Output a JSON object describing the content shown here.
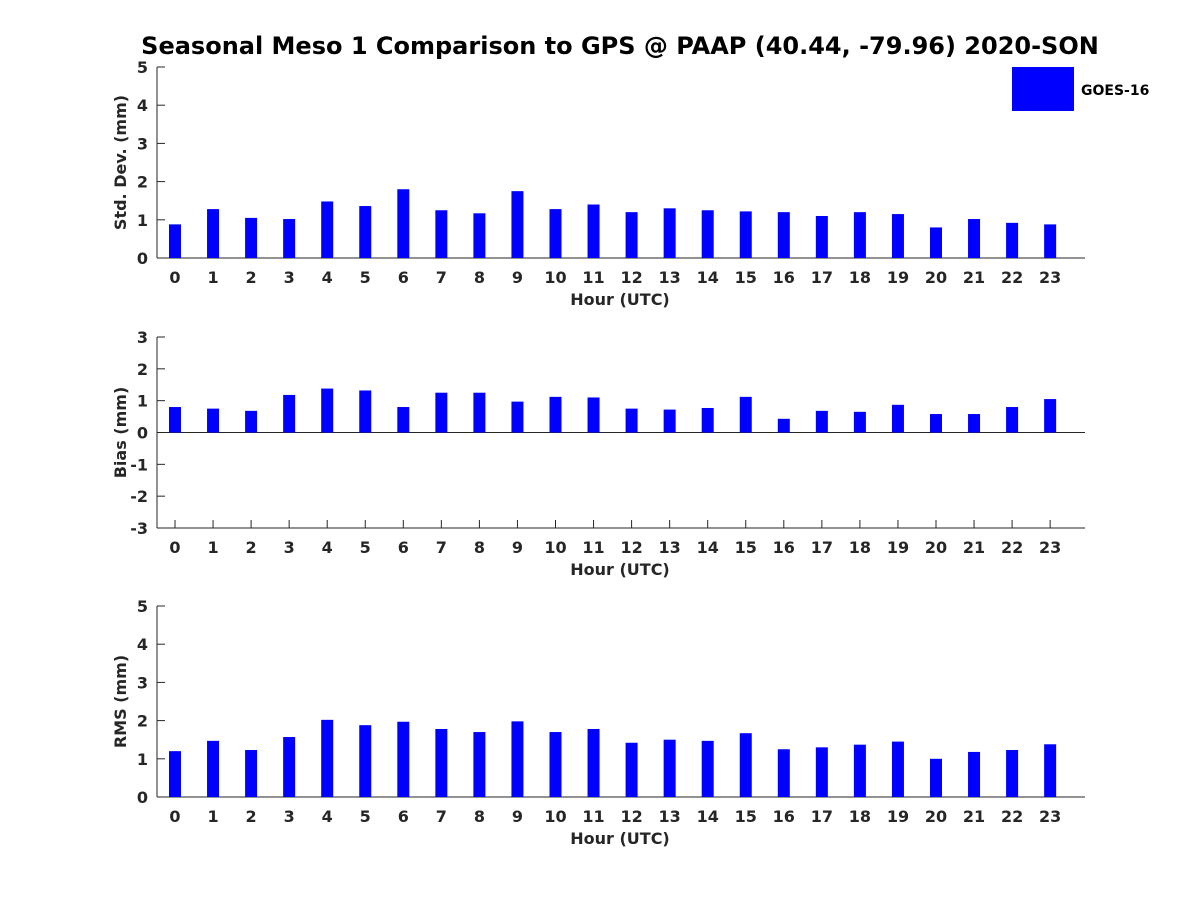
{
  "figure": {
    "title": "Seasonal Meso 1 Comparison to GPS @ PAAP (40.44, -79.96) 2020-SON"
  },
  "legend": {
    "label": "GOES-16",
    "color": "#0000ff"
  },
  "chart_data": [
    {
      "type": "bar",
      "xlabel": "Hour (UTC)",
      "ylabel": "Std. Dev. (mm)",
      "categories": [
        "0",
        "1",
        "2",
        "3",
        "4",
        "5",
        "6",
        "7",
        "8",
        "9",
        "10",
        "11",
        "12",
        "13",
        "14",
        "15",
        "16",
        "17",
        "18",
        "19",
        "20",
        "21",
        "22",
        "23"
      ],
      "series": [
        {
          "name": "GOES-16",
          "color": "#0000ff",
          "values": [
            0.88,
            1.28,
            1.05,
            1.02,
            1.48,
            1.36,
            1.8,
            1.25,
            1.17,
            1.75,
            1.28,
            1.4,
            1.2,
            1.3,
            1.25,
            1.22,
            1.2,
            1.1,
            1.2,
            1.15,
            0.8,
            1.02,
            0.92,
            0.88
          ]
        }
      ],
      "ylim": [
        0,
        5
      ],
      "yticks": [
        "0",
        "1",
        "2",
        "3",
        "4",
        "5"
      ],
      "grid": false,
      "legend_placement": "top-right"
    },
    {
      "type": "bar",
      "xlabel": "Hour (UTC)",
      "ylabel": "Bias (mm)",
      "categories": [
        "0",
        "1",
        "2",
        "3",
        "4",
        "5",
        "6",
        "7",
        "8",
        "9",
        "10",
        "11",
        "12",
        "13",
        "14",
        "15",
        "16",
        "17",
        "18",
        "19",
        "20",
        "21",
        "22",
        "23"
      ],
      "series": [
        {
          "name": "GOES-16",
          "color": "#0000ff",
          "values": [
            0.8,
            0.75,
            0.68,
            1.18,
            1.38,
            1.32,
            0.8,
            1.25,
            1.25,
            0.97,
            1.12,
            1.1,
            0.75,
            0.72,
            0.77,
            1.12,
            0.43,
            0.68,
            0.65,
            0.87,
            0.58,
            0.58,
            0.8,
            1.05
          ]
        }
      ],
      "ylim": [
        -3,
        3
      ],
      "yticks": [
        "-3",
        "-2",
        "-1",
        "0",
        "1",
        "2",
        "3"
      ],
      "grid": false
    },
    {
      "type": "bar",
      "xlabel": "Hour (UTC)",
      "ylabel": "RMS (mm)",
      "categories": [
        "0",
        "1",
        "2",
        "3",
        "4",
        "5",
        "6",
        "7",
        "8",
        "9",
        "10",
        "11",
        "12",
        "13",
        "14",
        "15",
        "16",
        "17",
        "18",
        "19",
        "20",
        "21",
        "22",
        "23"
      ],
      "series": [
        {
          "name": "GOES-16",
          "color": "#0000ff",
          "values": [
            1.2,
            1.47,
            1.23,
            1.57,
            2.02,
            1.88,
            1.97,
            1.78,
            1.7,
            1.98,
            1.7,
            1.78,
            1.42,
            1.5,
            1.47,
            1.67,
            1.25,
            1.3,
            1.37,
            1.45,
            1.0,
            1.18,
            1.23,
            1.38
          ]
        }
      ],
      "ylim": [
        0,
        5
      ],
      "yticks": [
        "0",
        "1",
        "2",
        "3",
        "4",
        "5"
      ],
      "grid": false
    }
  ]
}
